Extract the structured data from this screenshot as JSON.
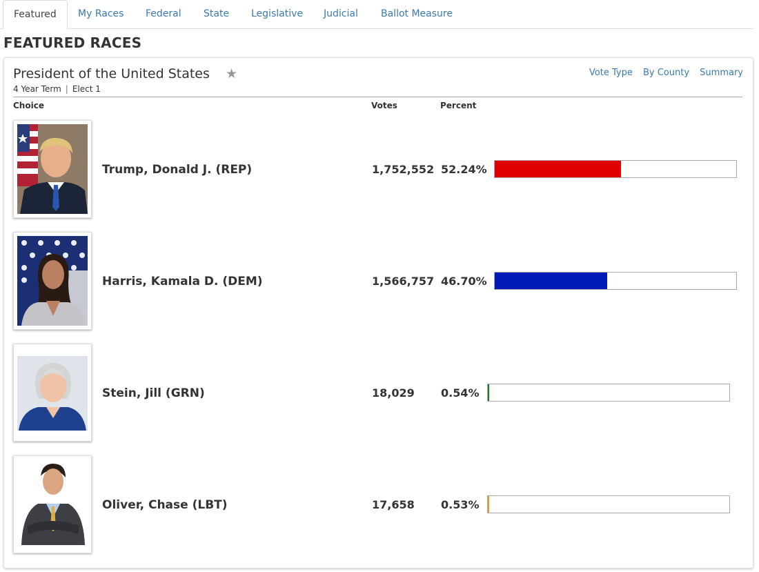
{
  "tabs": [
    {
      "label": "Featured",
      "active": true
    },
    {
      "label": "My Races"
    },
    {
      "label": "Federal"
    },
    {
      "label": "State"
    },
    {
      "label": "Legislative"
    },
    {
      "label": "Judicial"
    },
    {
      "label": "Ballot Measure"
    }
  ],
  "section_title": "FEATURED RACES",
  "race": {
    "title": "President of the United States",
    "term": "4 Year Term",
    "separator": "|",
    "elect": "Elect 1",
    "links": [
      "Vote Type",
      "By County",
      "Summary"
    ],
    "columns": {
      "choice": "Choice",
      "votes": "Votes",
      "percent": "Percent"
    },
    "candidates": [
      {
        "name": "Trump, Donald J. (REP)",
        "votes": "1,752,552",
        "percent": "52.24%",
        "fraction": 0.5224,
        "color": "#e00000"
      },
      {
        "name": "Harris, Kamala D. (DEM)",
        "votes": "1,566,757",
        "percent": "46.70%",
        "fraction": 0.467,
        "color": "#0018b8"
      },
      {
        "name": "Stein, Jill (GRN)",
        "votes": "18,029",
        "percent": "0.54%",
        "fraction": 0.0054,
        "color": "#1e7a1e"
      },
      {
        "name": "Oliver, Chase (LBT)",
        "votes": "17,658",
        "percent": "0.53%",
        "fraction": 0.0053,
        "color": "#e0a020"
      }
    ]
  },
  "colors": {
    "link": "#3a7ab3",
    "text": "#333333"
  },
  "icons": {
    "favorite": "star-icon"
  }
}
